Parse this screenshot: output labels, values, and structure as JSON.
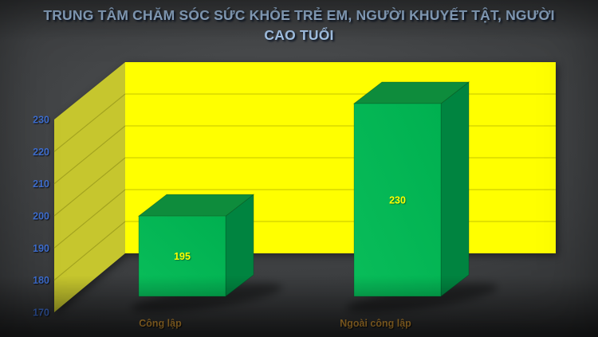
{
  "chart_data": {
    "type": "bar",
    "variant": "3d-column",
    "title": "TRUNG TÂM CHĂM SÓC SỨC KHỎE TRẺ EM, NGƯỜI KHUYẾT TẬT, NGƯỜI CAO TUỔI",
    "title_lines": [
      "TRUNG TÂM CHĂM SÓC SỨC KHỎE TRẺ EM, NGƯỜI KHUYẾT TẬT, NGƯỜI",
      "CAO TUỔI"
    ],
    "categories": [
      "Công lập",
      "Ngoài công lập"
    ],
    "values": [
      195,
      230
    ],
    "data_labels": [
      "195",
      "230"
    ],
    "xlabel": "",
    "ylabel": "",
    "ylim": [
      170,
      230
    ],
    "yticks": [
      170,
      180,
      190,
      200,
      210,
      220,
      230
    ],
    "grid": true,
    "legend": false
  },
  "colors": {
    "title_text": "#a9c9ec",
    "axis_tick_text": "#3f6fd0",
    "plot_back_wall": "#ffff00",
    "plot_side_wall": "#c6c62e",
    "gridline_back": "#d9d900",
    "gridline_side": "#a3a31f",
    "bar_front": "#00b050",
    "bar_front_light": "#09bd5a",
    "bar_top": "#0e8c3c",
    "bar_side": "#008440",
    "bar_edge": "rgba(0,70,30,0.45)",
    "value_label": "#ffff00",
    "category_label": "#edaa3c",
    "floor_shadow": "rgba(0,0,0,0.40)"
  }
}
